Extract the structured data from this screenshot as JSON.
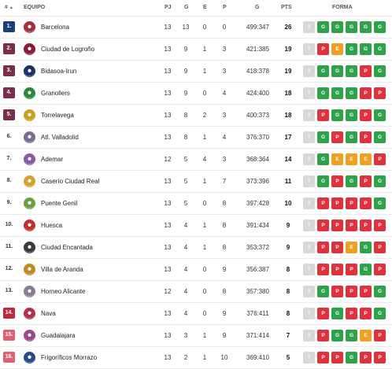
{
  "headers": {
    "pos": "#",
    "sort_icon": "▲",
    "team": "EQUIPO",
    "pj": "PJ",
    "g": "G",
    "e": "E",
    "p": "P",
    "goals": "G",
    "pts": "PTS",
    "form": "FORMA"
  },
  "colors": {
    "win": "#2fa34a",
    "draw": "#f0a020",
    "loss": "#e0323c",
    "unknown": "#d8d8d8"
  },
  "rows": [
    {
      "pos": "1.",
      "zone": "z1",
      "crest_color": "#a4303a",
      "team": "Barcelona",
      "pj": "13",
      "g": "13",
      "e": "0",
      "p": "0",
      "goals": "499:347",
      "pts": "26",
      "form": [
        "?",
        "G",
        "G",
        "G",
        "G",
        "G"
      ]
    },
    {
      "pos": "2.",
      "zone": "z2",
      "crest_color": "#8a1c3a",
      "team": "Ciudad de Logroño",
      "pj": "13",
      "g": "9",
      "e": "1",
      "p": "3",
      "goals": "421:385",
      "pts": "19",
      "form": [
        "?",
        "P",
        "E",
        "G",
        "G",
        "G"
      ]
    },
    {
      "pos": "3.",
      "zone": "z2",
      "crest_color": "#1f2f6a",
      "team": "Bidasoa-Irun",
      "pj": "13",
      "g": "9",
      "e": "1",
      "p": "3",
      "goals": "418:378",
      "pts": "19",
      "form": [
        "?",
        "G",
        "G",
        "G",
        "P",
        "G"
      ]
    },
    {
      "pos": "4.",
      "zone": "z2",
      "crest_color": "#2a8a3a",
      "team": "Granollers",
      "pj": "13",
      "g": "9",
      "e": "0",
      "p": "4",
      "goals": "424:400",
      "pts": "18",
      "form": [
        "?",
        "G",
        "G",
        "G",
        "P",
        "P"
      ]
    },
    {
      "pos": "5.",
      "zone": "z2",
      "crest_color": "#c9a020",
      "team": "Torrelavega",
      "pj": "13",
      "g": "8",
      "e": "2",
      "p": "3",
      "goals": "400:373",
      "pts": "18",
      "form": [
        "?",
        "P",
        "G",
        "G",
        "P",
        "G"
      ]
    },
    {
      "pos": "6.",
      "zone": "plain",
      "crest_color": "#7a6a9a",
      "team": "Atl. Valladolid",
      "pj": "13",
      "g": "8",
      "e": "1",
      "p": "4",
      "goals": "376:370",
      "pts": "17",
      "form": [
        "?",
        "G",
        "P",
        "G",
        "P",
        "G"
      ]
    },
    {
      "pos": "7.",
      "zone": "plain",
      "crest_color": "#8a5aa8",
      "team": "Ademar",
      "pj": "12",
      "g": "5",
      "e": "4",
      "p": "3",
      "goals": "368:364",
      "pts": "14",
      "form": [
        "?",
        "G",
        "E",
        "E",
        "E",
        "P"
      ]
    },
    {
      "pos": "8.",
      "zone": "plain",
      "crest_color": "#d4a030",
      "team": "Caserío Ciudad Real",
      "pj": "13",
      "g": "5",
      "e": "1",
      "p": "7",
      "goals": "373:396",
      "pts": "11",
      "form": [
        "?",
        "G",
        "P",
        "G",
        "P",
        "G"
      ]
    },
    {
      "pos": "9.",
      "zone": "plain",
      "crest_color": "#6aa040",
      "team": "Puente Genil",
      "pj": "13",
      "g": "5",
      "e": "0",
      "p": "8",
      "goals": "397:428",
      "pts": "10",
      "form": [
        "?",
        "P",
        "P",
        "P",
        "P",
        "G"
      ]
    },
    {
      "pos": "10.",
      "zone": "plain",
      "crest_color": "#c03030",
      "team": "Huesca",
      "pj": "13",
      "g": "4",
      "e": "1",
      "p": "8",
      "goals": "391:434",
      "pts": "9",
      "form": [
        "?",
        "P",
        "P",
        "P",
        "P",
        "P"
      ]
    },
    {
      "pos": "11.",
      "zone": "plain",
      "crest_color": "#3a3a3a",
      "team": "Ciudad Encantada",
      "pj": "13",
      "g": "4",
      "e": "1",
      "p": "8",
      "goals": "353:372",
      "pts": "9",
      "form": [
        "?",
        "P",
        "P",
        "E",
        "G",
        "P"
      ]
    },
    {
      "pos": "12.",
      "zone": "plain",
      "crest_color": "#c08a20",
      "team": "Villa de Aranda",
      "pj": "13",
      "g": "4",
      "e": "0",
      "p": "9",
      "goals": "356:387",
      "pts": "8",
      "form": [
        "?",
        "P",
        "P",
        "P",
        "G",
        "P"
      ]
    },
    {
      "pos": "13.",
      "zone": "plain",
      "crest_color": "#8a7a9a",
      "team": "Horneo Alicante",
      "pj": "12",
      "g": "4",
      "e": "0",
      "p": "8",
      "goals": "357:380",
      "pts": "8",
      "form": [
        "?",
        "G",
        "P",
        "P",
        "P",
        "G"
      ]
    },
    {
      "pos": "14.",
      "zone": "z3",
      "crest_color": "#b03050",
      "team": "Nava",
      "pj": "13",
      "g": "4",
      "e": "0",
      "p": "9",
      "goals": "376:411",
      "pts": "8",
      "form": [
        "?",
        "P",
        "G",
        "P",
        "P",
        "G"
      ]
    },
    {
      "pos": "15.",
      "zone": "z4",
      "crest_color": "#9a4a8a",
      "team": "Guadalajara",
      "pj": "13",
      "g": "3",
      "e": "1",
      "p": "9",
      "goals": "371:414",
      "pts": "7",
      "form": [
        "?",
        "P",
        "G",
        "G",
        "E",
        "P"
      ]
    },
    {
      "pos": "16.",
      "zone": "z4",
      "crest_color": "#2a4a8a",
      "team": "Frigoríficos Morrazo",
      "pj": "13",
      "g": "2",
      "e": "1",
      "p": "10",
      "goals": "369:410",
      "pts": "5",
      "form": [
        "?",
        "P",
        "P",
        "G",
        "P",
        "P"
      ]
    }
  ]
}
